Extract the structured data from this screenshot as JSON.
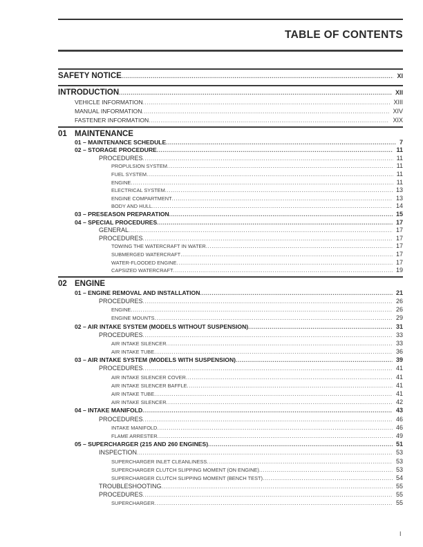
{
  "header": {
    "title": "TABLE OF CONTENTS"
  },
  "front": [
    {
      "label": "SAFETY NOTICE",
      "page": "XI",
      "children": []
    },
    {
      "label": "INTRODUCTION",
      "page": "XII",
      "children": [
        {
          "label": "VEHICLE INFORMATION",
          "page": "XIII"
        },
        {
          "label": "MANUAL INFORMATION",
          "page": "XIV"
        },
        {
          "label": "FASTENER INFORMATION",
          "page": "XIX"
        }
      ]
    }
  ],
  "chapters": [
    {
      "number": "01",
      "title": "MAINTENANCE",
      "entries": [
        {
          "level": 1,
          "label": "01 – MAINTENANCE SCHEDULE",
          "page": "7"
        },
        {
          "level": 1,
          "label": "02 – STORAGE PROCEDURE",
          "page": "11"
        },
        {
          "level": 2,
          "label": "PROCEDURES",
          "page": "11"
        },
        {
          "level": 3,
          "label": "PROPULSION SYSTEM",
          "page": "11"
        },
        {
          "level": 3,
          "label": "FUEL SYSTEM",
          "page": "11"
        },
        {
          "level": 3,
          "label": "ENGINE",
          "page": "11"
        },
        {
          "level": 3,
          "label": "ELECTRICAL SYSTEM",
          "page": "13"
        },
        {
          "level": 3,
          "label": "ENGINE COMPARTMENT",
          "page": "13"
        },
        {
          "level": 3,
          "label": "BODY AND HULL",
          "page": "14"
        },
        {
          "level": 1,
          "label": "03 – PRESEASON PREPARATION",
          "page": "15"
        },
        {
          "level": 1,
          "label": "04 – SPECIAL PROCEDURES",
          "page": "17"
        },
        {
          "level": 2,
          "label": "GENERAL",
          "page": "17"
        },
        {
          "level": 2,
          "label": "PROCEDURES",
          "page": "17"
        },
        {
          "level": 3,
          "label": "TOWING THE WATERCRAFT IN WATER",
          "page": "17"
        },
        {
          "level": 3,
          "label": "SUBMERGED WATERCRAFT",
          "page": "17"
        },
        {
          "level": 3,
          "label": "WATER-FLOODED ENGINE",
          "page": "17"
        },
        {
          "level": 3,
          "label": "CAPSIZED WATERCRAFT",
          "page": "19"
        }
      ]
    },
    {
      "number": "02",
      "title": "ENGINE",
      "entries": [
        {
          "level": 1,
          "label": "01 – ENGINE REMOVAL AND INSTALLATION",
          "page": "21"
        },
        {
          "level": 2,
          "label": "PROCEDURES",
          "page": "26"
        },
        {
          "level": 3,
          "label": "ENGINE",
          "page": "26"
        },
        {
          "level": 3,
          "label": "ENGINE MOUNTS",
          "page": "29"
        },
        {
          "level": 1,
          "label": "02 – AIR INTAKE SYSTEM (MODELS WITHOUT SUSPENSION)",
          "page": "31"
        },
        {
          "level": 2,
          "label": "PROCEDURES",
          "page": "33"
        },
        {
          "level": 3,
          "label": "AIR INTAKE SILENCER",
          "page": "33"
        },
        {
          "level": 3,
          "label": "AIR INTAKE TUBE",
          "page": "36"
        },
        {
          "level": 1,
          "label": "03 – AIR INTAKE SYSTEM (MODELS WITH SUSPENSION)",
          "page": "39"
        },
        {
          "level": 2,
          "label": "PROCEDURES",
          "page": "41"
        },
        {
          "level": 3,
          "label": "AIR INTAKE SILENCER COVER",
          "page": "41"
        },
        {
          "level": 3,
          "label": "AIR INTAKE SILENCER BAFFLE",
          "page": "41"
        },
        {
          "level": 3,
          "label": "AIR INTAKE TUBE",
          "page": "41"
        },
        {
          "level": 3,
          "label": "AIR INTAKE SILENCER",
          "page": "42"
        },
        {
          "level": 1,
          "label": "04 – INTAKE MANIFOLD",
          "page": "43"
        },
        {
          "level": 2,
          "label": "PROCEDURES",
          "page": "46"
        },
        {
          "level": 3,
          "label": "INTAKE MANIFOLD",
          "page": "46"
        },
        {
          "level": 3,
          "label": "FLAME ARRESTER",
          "page": "49"
        },
        {
          "level": 1,
          "label": "05 – SUPERCHARGER (215 AND 260 ENGINES)",
          "page": "51"
        },
        {
          "level": 2,
          "label": "INSPECTION",
          "page": "53"
        },
        {
          "level": 3,
          "label": "SUPERCHARGER INLET CLEANLINESS",
          "page": "53"
        },
        {
          "level": 3,
          "label": "SUPERCHARGER CLUTCH SLIPPING MOMENT (ON ENGINE)",
          "page": "53"
        },
        {
          "level": 3,
          "label": "SUPERCHARGER CLUTCH SLIPPING MOMENT (BENCH TEST)",
          "page": "54"
        },
        {
          "level": 2,
          "label": "TROUBLESHOOTING",
          "page": "55"
        },
        {
          "level": 2,
          "label": "PROCEDURES",
          "page": "55"
        },
        {
          "level": 3,
          "label": "SUPERCHARGER",
          "page": "55"
        }
      ]
    }
  ],
  "footer": {
    "page_number": "I"
  }
}
